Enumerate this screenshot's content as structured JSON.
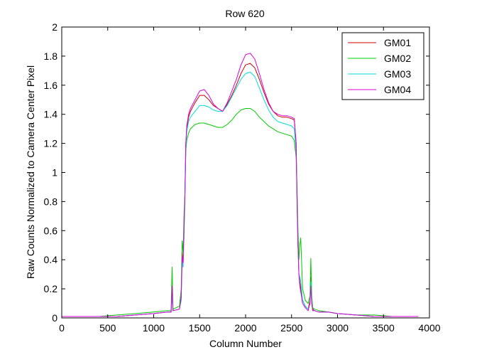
{
  "chart_data": {
    "type": "line",
    "title": "Row 620",
    "xlabel": "Column Number",
    "ylabel": "Raw Counts Normalized to Camera Center Pixel",
    "xlim": [
      0,
      4000
    ],
    "ylim": [
      0,
      2
    ],
    "xticks": [
      0,
      500,
      1000,
      1500,
      2000,
      2500,
      3000,
      3500,
      4000
    ],
    "yticks": [
      0,
      0.2,
      0.4,
      0.6,
      0.8,
      1,
      1.2,
      1.4,
      1.6,
      1.8,
      2
    ],
    "xtick_labels": [
      "0",
      "500",
      "1000",
      "1500",
      "2000",
      "2500",
      "3000",
      "3500",
      "4000"
    ],
    "ytick_labels": [
      "0",
      "0.2",
      "0.4",
      "0.6",
      "0.8",
      "1",
      "1.2",
      "1.4",
      "1.6",
      "1.8",
      "2"
    ],
    "grid": false,
    "legend_position": "top-right",
    "series": [
      {
        "name": "GM01",
        "color": "#cc0000",
        "x": [
          0,
          200,
          400,
          600,
          800,
          1000,
          1150,
          1190,
          1200,
          1210,
          1280,
          1300,
          1310,
          1320,
          1330,
          1340,
          1350,
          1360,
          1380,
          1400,
          1450,
          1500,
          1550,
          1600,
          1650,
          1700,
          1750,
          1800,
          1850,
          1900,
          1950,
          2000,
          2050,
          2100,
          2150,
          2200,
          2250,
          2300,
          2350,
          2400,
          2450,
          2500,
          2530,
          2550,
          2560,
          2570,
          2580,
          2590,
          2600,
          2620,
          2650,
          2680,
          2700,
          2710,
          2720,
          2730,
          2750,
          2800,
          2900,
          3000,
          3200,
          3400,
          3600,
          3800,
          3880
        ],
        "y": [
          0.01,
          0.01,
          0.01,
          0.01,
          0.02,
          0.03,
          0.04,
          0.04,
          0.2,
          0.05,
          0.06,
          0.15,
          0.45,
          0.35,
          0.6,
          0.85,
          1.2,
          1.3,
          1.38,
          1.42,
          1.48,
          1.53,
          1.53,
          1.5,
          1.46,
          1.44,
          1.42,
          1.47,
          1.53,
          1.6,
          1.68,
          1.74,
          1.75,
          1.72,
          1.64,
          1.55,
          1.47,
          1.42,
          1.39,
          1.38,
          1.38,
          1.37,
          1.36,
          1.2,
          0.8,
          0.5,
          0.3,
          0.25,
          0.2,
          0.12,
          0.08,
          0.06,
          0.12,
          0.28,
          0.12,
          0.06,
          0.05,
          0.04,
          0.04,
          0.03,
          0.02,
          0.01,
          0.01,
          0.01,
          0.01
        ]
      },
      {
        "name": "GM02",
        "color": "#00cc00",
        "x": [
          0,
          200,
          400,
          600,
          800,
          1000,
          1150,
          1190,
          1200,
          1210,
          1280,
          1300,
          1310,
          1320,
          1330,
          1340,
          1350,
          1360,
          1380,
          1400,
          1450,
          1500,
          1550,
          1600,
          1650,
          1700,
          1750,
          1800,
          1850,
          1900,
          1950,
          2000,
          2050,
          2100,
          2150,
          2200,
          2250,
          2300,
          2350,
          2400,
          2450,
          2500,
          2530,
          2550,
          2560,
          2570,
          2580,
          2590,
          2600,
          2620,
          2650,
          2680,
          2700,
          2710,
          2720,
          2730,
          2750,
          2800,
          2900,
          3000,
          3200,
          3400,
          3600,
          3800,
          3880
        ],
        "y": [
          0.01,
          0.01,
          0.01,
          0.02,
          0.03,
          0.04,
          0.05,
          0.05,
          0.35,
          0.06,
          0.08,
          0.2,
          0.53,
          0.45,
          0.7,
          0.85,
          1.15,
          1.22,
          1.27,
          1.3,
          1.33,
          1.34,
          1.34,
          1.33,
          1.32,
          1.31,
          1.31,
          1.33,
          1.36,
          1.4,
          1.43,
          1.44,
          1.44,
          1.42,
          1.38,
          1.35,
          1.32,
          1.3,
          1.28,
          1.27,
          1.26,
          1.25,
          1.22,
          1.1,
          0.9,
          0.6,
          0.4,
          0.5,
          0.55,
          0.2,
          0.12,
          0.1,
          0.15,
          0.41,
          0.15,
          0.07,
          0.06,
          0.05,
          0.04,
          0.03,
          0.02,
          0.02,
          0.01,
          0.01,
          0.01
        ]
      },
      {
        "name": "GM03",
        "color": "#00dddd",
        "x": [
          0,
          200,
          400,
          600,
          800,
          1000,
          1150,
          1190,
          1200,
          1210,
          1280,
          1300,
          1310,
          1320,
          1330,
          1340,
          1350,
          1360,
          1380,
          1400,
          1450,
          1500,
          1550,
          1600,
          1650,
          1700,
          1750,
          1800,
          1850,
          1900,
          1950,
          2000,
          2050,
          2100,
          2150,
          2200,
          2250,
          2300,
          2350,
          2400,
          2450,
          2500,
          2530,
          2550,
          2560,
          2570,
          2580,
          2590,
          2600,
          2620,
          2650,
          2680,
          2700,
          2710,
          2720,
          2730,
          2750,
          2800,
          2900,
          3000,
          3200,
          3400,
          3600,
          3800,
          3880
        ],
        "y": [
          0.01,
          0.01,
          0.01,
          0.01,
          0.02,
          0.03,
          0.04,
          0.04,
          0.18,
          0.05,
          0.06,
          0.12,
          0.4,
          0.35,
          0.55,
          0.8,
          1.15,
          1.28,
          1.35,
          1.38,
          1.42,
          1.46,
          1.46,
          1.45,
          1.43,
          1.42,
          1.42,
          1.46,
          1.52,
          1.58,
          1.64,
          1.68,
          1.69,
          1.66,
          1.58,
          1.5,
          1.43,
          1.38,
          1.35,
          1.34,
          1.33,
          1.32,
          1.3,
          1.15,
          0.8,
          0.5,
          0.3,
          0.28,
          0.25,
          0.12,
          0.08,
          0.06,
          0.1,
          0.25,
          0.1,
          0.05,
          0.05,
          0.04,
          0.04,
          0.03,
          0.02,
          0.01,
          0.01,
          0.01,
          0.01
        ]
      },
      {
        "name": "GM04",
        "color": "#dd00dd",
        "x": [
          0,
          200,
          400,
          600,
          800,
          1000,
          1150,
          1190,
          1200,
          1210,
          1280,
          1300,
          1310,
          1320,
          1330,
          1340,
          1350,
          1360,
          1380,
          1400,
          1450,
          1500,
          1550,
          1600,
          1650,
          1700,
          1750,
          1800,
          1850,
          1900,
          1950,
          2000,
          2050,
          2100,
          2150,
          2200,
          2250,
          2300,
          2350,
          2400,
          2450,
          2500,
          2530,
          2550,
          2560,
          2570,
          2580,
          2590,
          2600,
          2620,
          2650,
          2680,
          2700,
          2710,
          2720,
          2730,
          2750,
          2800,
          2900,
          3000,
          3200,
          3400,
          3600,
          3800,
          3880
        ],
        "y": [
          0.01,
          0.01,
          0.01,
          0.01,
          0.02,
          0.03,
          0.04,
          0.04,
          0.22,
          0.05,
          0.06,
          0.14,
          0.42,
          0.38,
          0.6,
          0.85,
          1.2,
          1.32,
          1.4,
          1.44,
          1.5,
          1.56,
          1.57,
          1.53,
          1.47,
          1.44,
          1.42,
          1.48,
          1.56,
          1.64,
          1.74,
          1.81,
          1.82,
          1.78,
          1.68,
          1.57,
          1.48,
          1.42,
          1.4,
          1.39,
          1.39,
          1.38,
          1.37,
          1.2,
          0.8,
          0.5,
          0.3,
          0.22,
          0.18,
          0.1,
          0.07,
          0.05,
          0.1,
          0.22,
          0.1,
          0.05,
          0.05,
          0.04,
          0.04,
          0.03,
          0.02,
          0.01,
          0.01,
          0.01,
          0.01
        ]
      }
    ]
  }
}
